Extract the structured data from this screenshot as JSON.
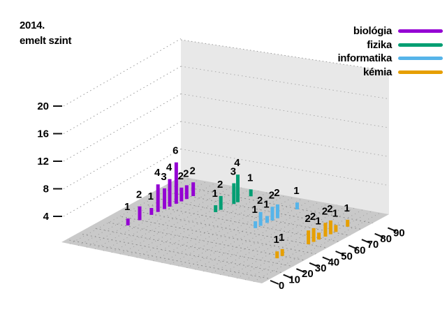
{
  "title": {
    "line1": "2014.",
    "line2": "emelt szint"
  },
  "legend": [
    {
      "label": "biológia",
      "color": "#9400d3"
    },
    {
      "label": "fizika",
      "color": "#009e73"
    },
    {
      "label": "informatika",
      "color": "#56b4e9"
    },
    {
      "label": "kémia",
      "color": "#e69f00"
    }
  ],
  "chart_data": {
    "type": "bar",
    "projection": "3d",
    "title": "2014. emelt szint",
    "x_axis": {
      "ticks": [
        0,
        10,
        20,
        30,
        40,
        50,
        60,
        70,
        80,
        90
      ]
    },
    "z_axis": {
      "ticks": [
        4,
        8,
        12,
        16,
        20
      ]
    },
    "floor_color": "#c9c9c9",
    "wall_color": "#e8e8e8",
    "series": [
      {
        "name": "biológia",
        "color": "#9400d3",
        "points": [
          {
            "x": 31,
            "count": 1
          },
          {
            "x": 40,
            "count": 2
          },
          {
            "x": 49,
            "count": 1
          },
          {
            "x": 54,
            "count": 4
          },
          {
            "x": 59,
            "count": 3
          },
          {
            "x": 63,
            "count": 4
          },
          {
            "x": 68,
            "count": 6
          },
          {
            "x": 72,
            "count": 2
          },
          {
            "x": 76,
            "count": 2
          },
          {
            "x": 81,
            "count": 2
          }
        ]
      },
      {
        "name": "fizika",
        "color": "#009e73",
        "points": [
          {
            "x": 67,
            "count": 1
          },
          {
            "x": 71,
            "count": 2
          },
          {
            "x": 81,
            "count": 3
          },
          {
            "x": 84,
            "count": 4
          },
          {
            "x": 94,
            "count": 1
          }
        ]
      },
      {
        "name": "informatika",
        "color": "#56b4e9",
        "points": [
          {
            "x": 57,
            "count": 1
          },
          {
            "x": 61,
            "count": 2
          },
          {
            "x": 66,
            "count": 1
          },
          {
            "x": 70,
            "count": 2
          },
          {
            "x": 74,
            "count": 2
          },
          {
            "x": 89,
            "count": 1
          }
        ]
      },
      {
        "name": "kémia",
        "color": "#e69f00",
        "points": [
          {
            "x": 26,
            "count": 1
          },
          {
            "x": 30,
            "count": 1
          },
          {
            "x": 50,
            "count": 2
          },
          {
            "x": 54,
            "count": 2
          },
          {
            "x": 58,
            "count": 1
          },
          {
            "x": 63,
            "count": 2
          },
          {
            "x": 67,
            "count": 2
          },
          {
            "x": 71,
            "count": 1
          },
          {
            "x": 80,
            "count": 1
          }
        ]
      }
    ]
  }
}
